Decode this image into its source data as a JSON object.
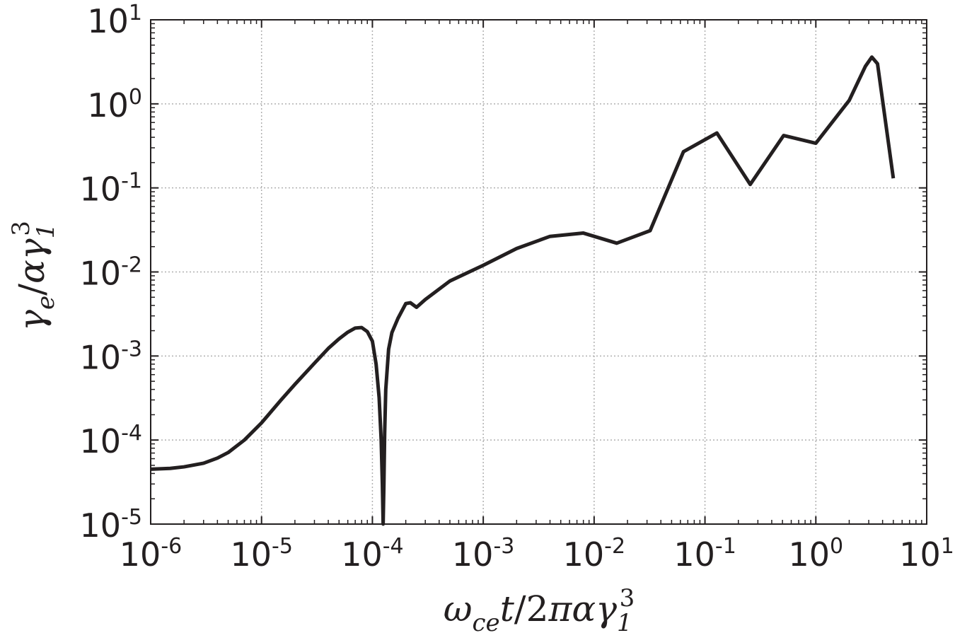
{
  "chart_data": {
    "type": "line",
    "title": "",
    "xlabel": {
      "parts": [
        {
          "text": "ω",
          "style": "italic"
        },
        {
          "text": "ce",
          "style": "sub"
        },
        {
          "text": "t",
          "style": "italic"
        },
        {
          "text": "/2",
          "style": "normal"
        },
        {
          "text": "πα",
          "style": "italic"
        },
        {
          "text": "γ",
          "style": "italic"
        },
        {
          "text": "1",
          "style": "sub"
        },
        {
          "text": "3",
          "style": "sup"
        }
      ]
    },
    "ylabel": {
      "parts": [
        {
          "text": "γ",
          "style": "italic"
        },
        {
          "text": "e",
          "style": "sub"
        },
        {
          "text": "/",
          "style": "normal"
        },
        {
          "text": "α",
          "style": "italic"
        },
        {
          "text": "γ",
          "style": "italic"
        },
        {
          "text": "1",
          "style": "sub"
        },
        {
          "text": "3",
          "style": "sup"
        }
      ]
    },
    "xscale": "log",
    "yscale": "log",
    "xlim": [
      1e-06,
      10
    ],
    "ylim": [
      1e-05,
      10
    ],
    "grid": true,
    "line_color": "#231f20",
    "x_ticks": [
      {
        "base": "10",
        "exp": "-6",
        "value": 1e-06
      },
      {
        "base": "10",
        "exp": "-5",
        "value": 1e-05
      },
      {
        "base": "10",
        "exp": "-4",
        "value": 0.0001
      },
      {
        "base": "10",
        "exp": "-3",
        "value": 0.001
      },
      {
        "base": "10",
        "exp": "-2",
        "value": 0.01
      },
      {
        "base": "10",
        "exp": "-1",
        "value": 0.1
      },
      {
        "base": "10",
        "exp": "0",
        "value": 1
      },
      {
        "base": "10",
        "exp": "1",
        "value": 10
      }
    ],
    "y_ticks": [
      {
        "base": "10",
        "exp": "-5",
        "value": 1e-05
      },
      {
        "base": "10",
        "exp": "-4",
        "value": 0.0001
      },
      {
        "base": "10",
        "exp": "-3",
        "value": 0.001
      },
      {
        "base": "10",
        "exp": "-2",
        "value": 0.01
      },
      {
        "base": "10",
        "exp": "-1",
        "value": 0.1
      },
      {
        "base": "10",
        "exp": "0",
        "value": 1
      },
      {
        "base": "10",
        "exp": "1",
        "value": 10
      }
    ],
    "series": [
      {
        "x": [
          1e-06,
          1.5e-06,
          2e-06,
          3e-06,
          4e-06,
          5e-06,
          7e-06,
          1e-05,
          1.5e-05,
          2e-05,
          3e-05,
          4e-05,
          5e-05,
          6e-05,
          7e-05,
          8e-05,
          9e-05,
          0.0001,
          0.000108,
          0.000115,
          0.00012,
          0.000123,
          0.000125,
          0.000127,
          0.000129,
          0.000132,
          0.00014,
          0.00015,
          0.00017,
          0.0002,
          0.00022,
          0.00025,
          0.0003,
          0.0005,
          0.001,
          0.002,
          0.004,
          0.008,
          0.016,
          0.032,
          0.064,
          0.128,
          0.256,
          0.512,
          1.0,
          2.0,
          2.8,
          3.2,
          3.6,
          5.0
        ],
        "y": [
          4.5e-05,
          4.6e-05,
          4.8e-05,
          5.3e-05,
          6.1e-05,
          7.1e-05,
          0.0001,
          0.00016,
          0.0003,
          0.00046,
          0.00082,
          0.00123,
          0.0016,
          0.00192,
          0.00215,
          0.00218,
          0.00195,
          0.0015,
          0.0008,
          0.00032,
          0.0001,
          3e-05,
          1e-05,
          3e-05,
          0.00012,
          0.0004,
          0.0012,
          0.0019,
          0.0028,
          0.0042,
          0.0043,
          0.0038,
          0.0047,
          0.0078,
          0.012,
          0.019,
          0.0265,
          0.029,
          0.022,
          0.031,
          0.27,
          0.45,
          0.11,
          0.42,
          0.34,
          1.1,
          2.8,
          3.6,
          3.0,
          0.13
        ]
      }
    ]
  }
}
